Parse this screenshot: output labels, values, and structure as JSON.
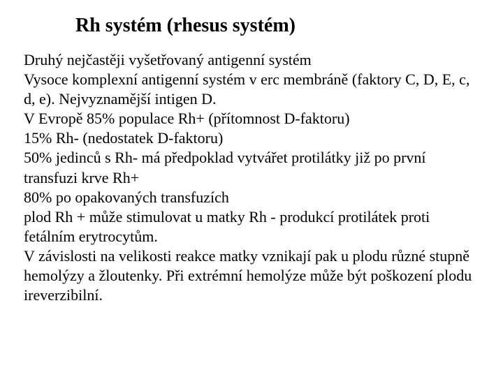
{
  "slide": {
    "title": "Rh systém (rhesus systém)",
    "body_lines": [
      "Druhý nejčastěji vyšetřovaný antigenní systém",
      "Vysoce komplexní antigenní systém v erc membráně  (faktory C, D, E, c, d, e). Nejvyznamější intigen D.",
      "V Evropě 85% populace Rh+ (přítomnost D-faktoru)",
      "15% Rh- (nedostatek D-faktoru)",
      "50% jedinců s Rh-  má předpoklad vytvářet protilátky již po první transfuzi krve Rh+",
      "80% po opakovaných transfuzích",
      "plod Rh + může stimulovat u matky Rh - produkcí protilátek proti fetálním erytrocytům.",
      "V závislosti na velikosti reakce matky vznikají pak u plodu různé stupně hemolýzy a žloutenky. Při extrémní hemolýze může být poškození plodu ireverzibilní."
    ]
  },
  "style": {
    "background_color": "#ffffff",
    "text_color": "#000000",
    "title_fontsize": 28,
    "body_fontsize": 22,
    "font_family": "Times New Roman"
  }
}
